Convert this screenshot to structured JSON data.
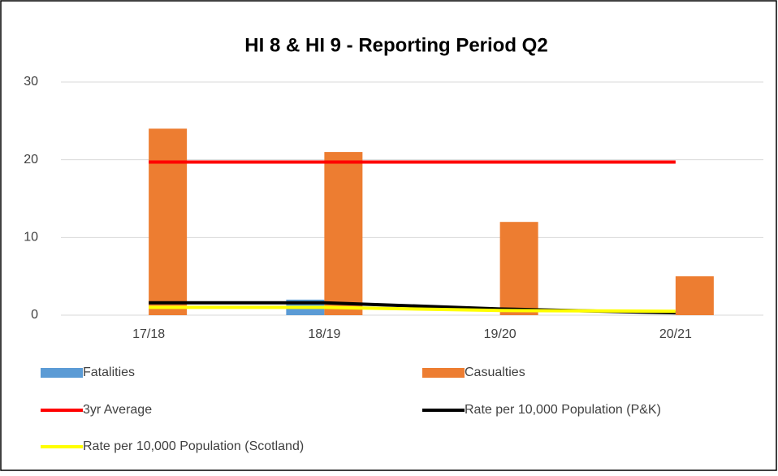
{
  "chart_data": {
    "type": "bar",
    "title": "HI 8 & HI 9 - Reporting Period Q2",
    "categories": [
      "17/18",
      "18/19",
      "19/20",
      "20/21"
    ],
    "series": [
      {
        "name": "Fatalities",
        "type": "bar",
        "color": "#5b9bd5",
        "values": [
          0,
          2,
          0,
          0
        ]
      },
      {
        "name": "Casualties",
        "type": "bar",
        "color": "#ed7d31",
        "values": [
          24,
          21,
          12,
          5
        ]
      },
      {
        "name": "3yr Average",
        "type": "line",
        "color": "#ff0000",
        "values": [
          19.7,
          19.7,
          19.7,
          19.7
        ]
      },
      {
        "name": "Rate per 10,000 Population (P&K)",
        "type": "line",
        "color": "#000000",
        "values": [
          1.6,
          1.6,
          0.8,
          0.3
        ]
      },
      {
        "name": "Rate per 10,000 Population (Scotland)",
        "type": "line",
        "color": "#ffff00",
        "values": [
          1.0,
          1.0,
          0.6,
          0.5
        ]
      }
    ],
    "ylim": [
      0,
      30
    ],
    "yticks": [
      0,
      10,
      20,
      30
    ],
    "grid": true,
    "legend": "bottom"
  }
}
